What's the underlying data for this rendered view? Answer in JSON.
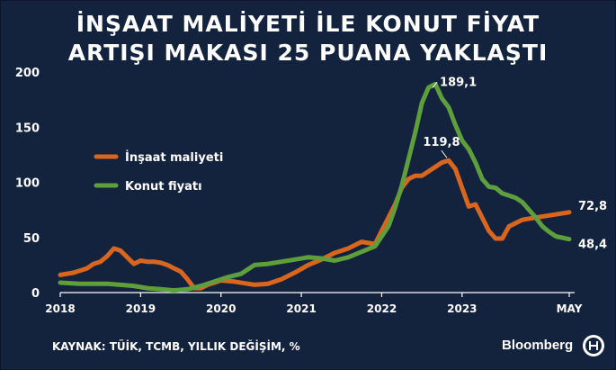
{
  "title_line1": "İNŞAAT MALİYETİ İLE KONUT FİYAT",
  "title_line2": "ARTIŞI MAKASI 25 PUANA YAKLAŞTI",
  "source": "KAYNAK: TÜİK, TCMB, YILLIK DEĞİŞİM, %",
  "brand": "Bloomberg",
  "logo_icon": "bloomberg-ht-logo-icon",
  "colors": {
    "background": "#14233d",
    "insaat": "#d9661e",
    "konut": "#5e9e3c",
    "text": "#ffffff"
  },
  "chart_data": {
    "type": "line",
    "y_ticks": [
      "0",
      "50",
      "100",
      "150",
      "200"
    ],
    "ylim": [
      0,
      200
    ],
    "x_ticks": [
      "2018",
      "2019",
      "2020",
      "2021",
      "2022",
      "2023",
      "MAY"
    ],
    "x_tick_dates": [
      "2018-01",
      "2019-01",
      "2020-01",
      "2021-01",
      "2022-01",
      "2023-01",
      "2024-05"
    ],
    "grid": false,
    "legend_position": "left",
    "series": [
      {
        "name": "İnşaat maliyeti",
        "color": "#d9661e",
        "dates": [
          "2018-01",
          "2018-03",
          "2018-05",
          "2018-06",
          "2018-07",
          "2018-08",
          "2018-09",
          "2018-10",
          "2018-11",
          "2018-12",
          "2019-01",
          "2019-02",
          "2019-03",
          "2019-04",
          "2019-05",
          "2019-06",
          "2019-07",
          "2019-08",
          "2019-09",
          "2019-10",
          "2019-11",
          "2019-12",
          "2020-01",
          "2020-03",
          "2020-05",
          "2020-06",
          "2020-08",
          "2020-10",
          "2020-12",
          "2021-02",
          "2021-04",
          "2021-06",
          "2021-08",
          "2021-10",
          "2021-12",
          "2022-02",
          "2022-03",
          "2022-04",
          "2022-05",
          "2022-06",
          "2022-07",
          "2022-08",
          "2022-09",
          "2022-10",
          "2022-11",
          "2022-12",
          "2023-01",
          "2023-02",
          "2023-03",
          "2023-04",
          "2023-05",
          "2023-06",
          "2023-07",
          "2023-08",
          "2023-10",
          "2023-12",
          "2024-02",
          "2024-05"
        ],
        "values": [
          16,
          18,
          22,
          26,
          28,
          33,
          40,
          38,
          32,
          26,
          29,
          28,
          28,
          27,
          25,
          22,
          19,
          12,
          4,
          4,
          7,
          9,
          11,
          10,
          8,
          7,
          8,
          12,
          18,
          25,
          30,
          36,
          40,
          46,
          44,
          68,
          80,
          95,
          103,
          106,
          106,
          110,
          114,
          118,
          119.8,
          112,
          95,
          78,
          80,
          68,
          56,
          49,
          49,
          60,
          66,
          68,
          70,
          72.8
        ]
      },
      {
        "name": "Konut fiyatı",
        "color": "#5e9e3c",
        "dates": [
          "2018-01",
          "2018-04",
          "2018-08",
          "2018-10",
          "2018-12",
          "2019-02",
          "2019-04",
          "2019-06",
          "2019-08",
          "2019-10",
          "2019-12",
          "2020-02",
          "2020-04",
          "2020-06",
          "2020-08",
          "2020-10",
          "2020-12",
          "2021-02",
          "2021-04",
          "2021-06",
          "2021-08",
          "2021-10",
          "2021-12",
          "2022-02",
          "2022-03",
          "2022-04",
          "2022-05",
          "2022-06",
          "2022-07",
          "2022-08",
          "2022-09",
          "2022-10",
          "2022-11",
          "2022-12",
          "2023-01",
          "2023-02",
          "2023-03",
          "2023-04",
          "2023-05",
          "2023-06",
          "2023-07",
          "2023-08",
          "2023-09",
          "2023-10",
          "2023-11",
          "2023-12",
          "2024-01",
          "2024-02",
          "2024-03",
          "2024-05"
        ],
        "values": [
          9,
          8,
          8,
          7,
          6,
          4,
          3,
          2,
          3,
          6,
          10,
          14,
          17,
          25,
          26,
          28,
          30,
          32,
          31,
          29,
          32,
          37,
          42,
          60,
          77,
          97,
          121,
          145,
          172,
          186,
          189.1,
          176,
          168,
          152,
          138,
          130,
          118,
          103,
          96,
          95,
          90,
          88,
          86,
          82,
          75,
          68,
          60,
          55,
          51,
          48.4
        ]
      }
    ],
    "annotations": [
      {
        "text": "189,1",
        "series": "Konut fiyatı",
        "date": "2022-09",
        "value": 189.1
      },
      {
        "text": "119,8",
        "series": "İnşaat maliyeti",
        "date": "2022-11",
        "value": 119.8
      },
      {
        "text": "72,8",
        "series": "İnşaat maliyeti",
        "date": "2024-05",
        "value": 72.8
      },
      {
        "text": "48,4",
        "series": "Konut fiyatı",
        "date": "2024-05",
        "value": 48.4
      }
    ]
  }
}
